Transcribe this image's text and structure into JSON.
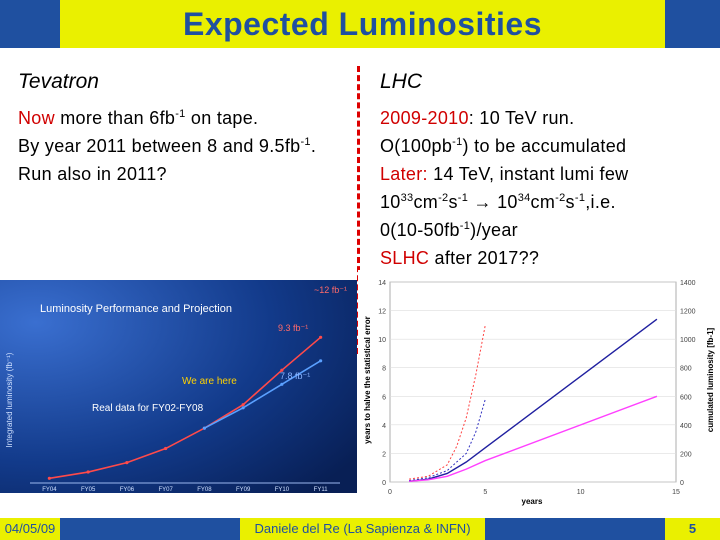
{
  "slide": {
    "title": "Expected Luminosities",
    "left_heading": "Tevatron",
    "right_heading": "LHC",
    "left_lines": [
      {
        "a": "Now",
        "b": " more than 6fb",
        "sup": "-1",
        "c": " on tape."
      },
      {
        "a": "By year 2011 between 8 and 9.5fb",
        "sup": "-1",
        "c": "."
      },
      {
        "a": "Run also in 2011?"
      }
    ],
    "right_lines": {
      "l1_red": "2009-2010",
      "l1_rest": ": 10 TeV run.",
      "l2_a": "O(100pb",
      "l2_sup": "-1",
      "l2_b": ") to be accumulated",
      "l3_red": "Later:",
      "l3_rest": " 14 TeV, instant lumi few",
      "l4_a": "10",
      "l4_sup1": "33",
      "l4_b": "cm",
      "l4_sup2": "-2",
      "l4_c": "s",
      "l4_sup3": "-1",
      "l4_d": " → 10",
      "l4_sup4": "34",
      "l4_e": "cm",
      "l4_sup5": "-2",
      "l4_f": "s",
      "l4_sup6": "-1",
      "l4_g": ",i.e.",
      "l5_a": "0(10-50fb",
      "l5_sup": "-1",
      "l5_b": ")/year",
      "l6_red": "SLHC",
      "l6_rest": " after 2017??"
    }
  },
  "footer": {
    "date": "04/05/09",
    "author": "Daniele del Re (La Sapienza & INFN)",
    "page": "5"
  },
  "colors": {
    "title_band": "#1f50a0",
    "title_box": "#eaf000",
    "accent_red": "#d00000"
  },
  "chart_data": [
    {
      "type": "line",
      "title": "Luminosity Performance and Projection",
      "ylabel": "Integrated luminosity (fb⁻¹)",
      "x": [
        "FY04",
        "FY05",
        "FY06",
        "FY07",
        "FY08",
        "FY09",
        "FY10",
        "FY11"
      ],
      "annotations": [
        "~12 fb⁻¹",
        "9.3 fb⁻¹",
        "7.8 fb⁻¹",
        "We are here",
        "Real data for FY02-FY08"
      ],
      "series": [
        {
          "values": [
            0.3,
            0.7,
            1.3,
            2.2,
            3.5,
            5.0,
            7.2,
            9.3
          ]
        },
        {
          "values": [
            null,
            null,
            null,
            null,
            3.5,
            4.8,
            6.3,
            7.8
          ]
        }
      ]
    },
    {
      "type": "line",
      "xlabel": "years",
      "ylabel": "years to halve the statistical error",
      "y2label": "cumulated luminosity [fb-1]",
      "xlim": [
        0,
        15
      ],
      "ylim": [
        0,
        14
      ],
      "y2lim": [
        0,
        1400
      ],
      "x_ticks": [
        "0",
        "5",
        "10",
        "15"
      ],
      "y_ticks": [
        "0",
        "2",
        "4",
        "6",
        "8",
        "10",
        "12",
        "14"
      ],
      "y2_ticks": [
        "0",
        "200",
        "400",
        "600",
        "800",
        "1000",
        "1200",
        "1400"
      ],
      "series": [
        {
          "axis": "left",
          "color": "#ff4040",
          "style": "dashed",
          "x": [
            1,
            2,
            3,
            3.5,
            4,
            4.5,
            5
          ],
          "y": [
            0.2,
            0.4,
            1.2,
            2.5,
            4.5,
            7.5,
            11
          ]
        },
        {
          "axis": "left",
          "color": "#3030c0",
          "style": "dashed",
          "x": [
            1,
            2,
            3,
            4,
            4.5,
            5
          ],
          "y": [
            0.1,
            0.3,
            0.8,
            2.0,
            3.5,
            5.8
          ]
        },
        {
          "axis": "right",
          "color": "#2020a0",
          "style": "solid",
          "x": [
            1,
            2,
            3,
            4,
            5,
            10,
            14
          ],
          "y": [
            5,
            20,
            60,
            140,
            240,
            740,
            1140
          ]
        },
        {
          "axis": "right",
          "color": "#ff40ff",
          "style": "solid",
          "x": [
            1,
            2,
            3,
            4,
            5,
            14
          ],
          "y": [
            5,
            15,
            40,
            90,
            150,
            600
          ]
        }
      ]
    }
  ]
}
